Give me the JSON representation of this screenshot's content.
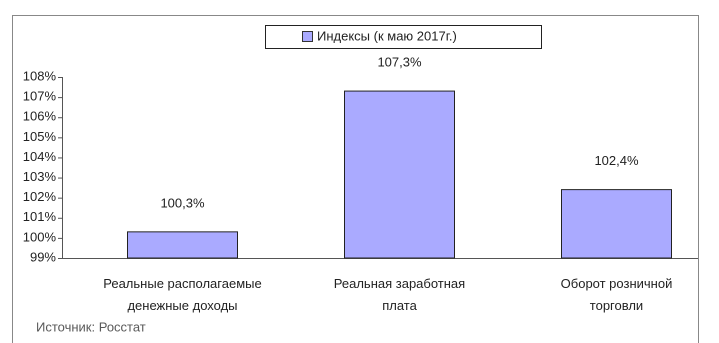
{
  "chart_data": {
    "type": "bar",
    "categories": [
      "Реальные располагаемые\nденежные доходы",
      "Реальная заработная\nплата",
      "Оборот розничной\nторговли"
    ],
    "series": [
      {
        "name": "Индексы (к маю 2017г.)",
        "color": "#aaaaff",
        "values": [
          100.3,
          107.3,
          102.4
        ],
        "value_labels": [
          "100,3%",
          "107,3%",
          "102,4%"
        ]
      }
    ],
    "ylim": [
      99,
      108
    ],
    "yticks": [
      {
        "value": 99,
        "label": "99%"
      },
      {
        "value": 100,
        "label": "100%"
      },
      {
        "value": 101,
        "label": "101%"
      },
      {
        "value": 102,
        "label": "102%"
      },
      {
        "value": 103,
        "label": "103%"
      },
      {
        "value": 104,
        "label": "104%"
      },
      {
        "value": 105,
        "label": "105%"
      },
      {
        "value": 106,
        "label": "106%"
      },
      {
        "value": 107,
        "label": "107%"
      },
      {
        "value": 108,
        "label": "108%"
      }
    ],
    "source": "Источник: Росстат"
  }
}
